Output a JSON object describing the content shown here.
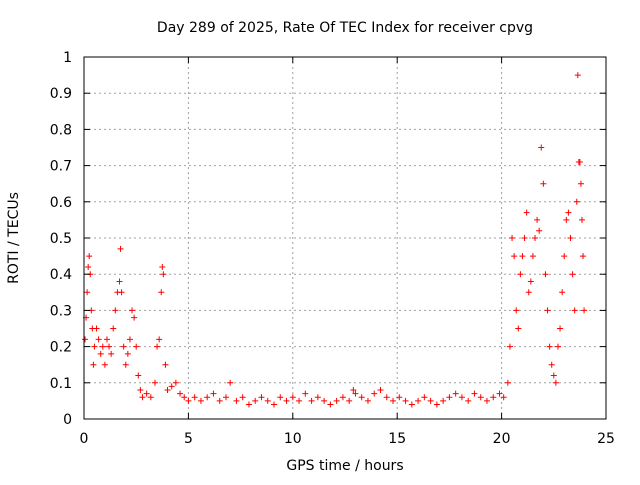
{
  "chart_data": {
    "type": "scatter",
    "title": "Day 289 of 2025, Rate Of TEC Index for receiver cpvg",
    "xlabel": "GPS time / hours",
    "ylabel": "ROTI / TECUs",
    "xlim": [
      0,
      25
    ],
    "ylim": [
      0,
      1
    ],
    "x_ticks": [
      "0",
      "5",
      "10",
      "15",
      "20",
      "25"
    ],
    "y_ticks": [
      "0",
      "0.1",
      "0.2",
      "0.3",
      "0.4",
      "0.5",
      "0.6",
      "0.7",
      "0.8",
      "0.9",
      "1"
    ],
    "x_tick_values": [
      0,
      5,
      10,
      15,
      20,
      25
    ],
    "y_tick_values": [
      0,
      0.1,
      0.2,
      0.3,
      0.4,
      0.5,
      0.6,
      0.7,
      0.8,
      0.9,
      1
    ],
    "grid": true,
    "marker": "+",
    "series": [
      {
        "name": "ROTI",
        "color": "#ff0000",
        "x": [
          0.05,
          0.1,
          0.15,
          0.2,
          0.25,
          0.3,
          0.35,
          0.4,
          0.45,
          0.5,
          0.6,
          0.7,
          0.8,
          0.9,
          1.0,
          1.1,
          1.2,
          1.3,
          1.4,
          1.5,
          1.6,
          1.7,
          1.75,
          1.8,
          1.9,
          2.0,
          2.1,
          2.2,
          2.3,
          2.4,
          2.5,
          2.6,
          2.7,
          2.8,
          3.0,
          3.2,
          3.4,
          3.5,
          3.6,
          3.7,
          3.75,
          3.8,
          3.9,
          4.0,
          4.2,
          4.4,
          4.6,
          4.8,
          5.0,
          5.3,
          5.6,
          5.9,
          6.2,
          6.5,
          6.8,
          7.0,
          7.3,
          7.6,
          7.9,
          8.2,
          8.5,
          8.8,
          9.1,
          9.4,
          9.7,
          10.0,
          10.3,
          10.6,
          10.9,
          11.2,
          11.5,
          11.8,
          12.1,
          12.4,
          12.7,
          12.9,
          13.0,
          13.3,
          13.6,
          13.9,
          14.2,
          14.5,
          14.8,
          15.1,
          15.4,
          15.7,
          16.0,
          16.3,
          16.6,
          16.9,
          17.2,
          17.5,
          17.8,
          18.1,
          18.4,
          18.7,
          19.0,
          19.3,
          19.6,
          19.9,
          20.1,
          20.3,
          20.4,
          20.5,
          20.6,
          20.7,
          20.8,
          20.9,
          21.0,
          21.1,
          21.2,
          21.3,
          21.4,
          21.5,
          21.6,
          21.7,
          21.8,
          21.9,
          22.0,
          22.1,
          22.2,
          22.3,
          22.4,
          22.5,
          22.6,
          22.7,
          22.8,
          22.9,
          23.0,
          23.1,
          23.2,
          23.3,
          23.4,
          23.5,
          23.6,
          23.65,
          23.7,
          23.75,
          23.8,
          23.85,
          23.9,
          23.95
        ],
        "y": [
          0.22,
          0.28,
          0.35,
          0.42,
          0.45,
          0.4,
          0.3,
          0.25,
          0.15,
          0.2,
          0.25,
          0.22,
          0.18,
          0.2,
          0.15,
          0.22,
          0.2,
          0.18,
          0.25,
          0.3,
          0.35,
          0.38,
          0.47,
          0.35,
          0.2,
          0.15,
          0.18,
          0.22,
          0.3,
          0.28,
          0.2,
          0.12,
          0.08,
          0.06,
          0.07,
          0.06,
          0.1,
          0.2,
          0.22,
          0.35,
          0.42,
          0.4,
          0.15,
          0.08,
          0.09,
          0.1,
          0.07,
          0.06,
          0.05,
          0.06,
          0.05,
          0.06,
          0.07,
          0.05,
          0.06,
          0.1,
          0.05,
          0.06,
          0.04,
          0.05,
          0.06,
          0.05,
          0.04,
          0.06,
          0.05,
          0.06,
          0.05,
          0.07,
          0.05,
          0.06,
          0.05,
          0.04,
          0.05,
          0.06,
          0.05,
          0.08,
          0.07,
          0.06,
          0.05,
          0.07,
          0.08,
          0.06,
          0.05,
          0.06,
          0.05,
          0.04,
          0.05,
          0.06,
          0.05,
          0.04,
          0.05,
          0.06,
          0.07,
          0.06,
          0.05,
          0.07,
          0.06,
          0.05,
          0.06,
          0.07,
          0.06,
          0.1,
          0.2,
          0.5,
          0.45,
          0.3,
          0.25,
          0.4,
          0.45,
          0.5,
          0.57,
          0.35,
          0.38,
          0.45,
          0.5,
          0.55,
          0.52,
          0.75,
          0.65,
          0.4,
          0.3,
          0.2,
          0.15,
          0.12,
          0.1,
          0.2,
          0.25,
          0.35,
          0.45,
          0.55,
          0.57,
          0.5,
          0.4,
          0.3,
          0.6,
          0.95,
          0.71,
          0.71,
          0.65,
          0.55,
          0.45,
          0.3
        ]
      }
    ]
  }
}
